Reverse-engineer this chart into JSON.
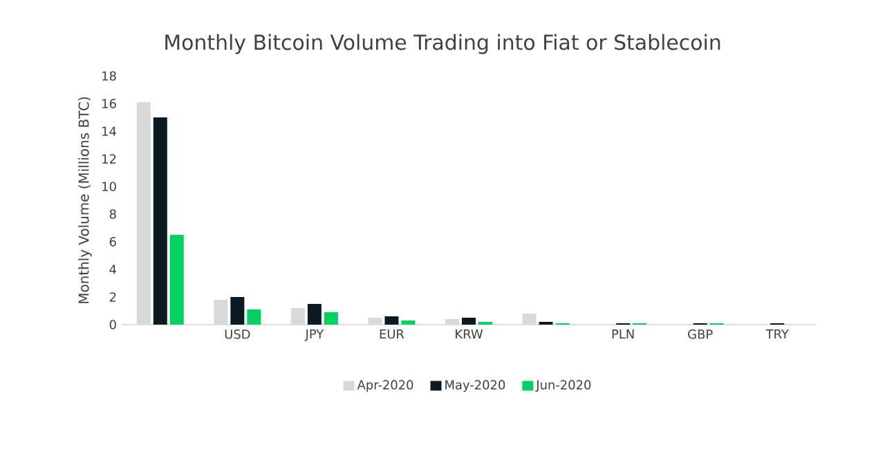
{
  "chart_data": {
    "type": "bar",
    "title": "Monthly Bitcoin Volume Trading into Fiat or Stablecoin",
    "ylabel": "Monthly Volume (Millions BTC)",
    "categories": [
      null,
      "USD",
      "JPY",
      "EUR",
      "KRW",
      null,
      "PLN",
      "GBP",
      "TRY"
    ],
    "series": [
      {
        "name": "Apr-2020",
        "color": "#d9d9d9",
        "values": [
          16.1,
          1.8,
          1.2,
          0.5,
          0.4,
          0.8,
          0.0,
          0.0,
          0.0
        ]
      },
      {
        "name": "May-2020",
        "color": "#0b1a22",
        "values": [
          15.0,
          2.0,
          1.5,
          0.6,
          0.5,
          0.2,
          0.1,
          0.1,
          0.1
        ]
      },
      {
        "name": "Jun-2020",
        "color": "#00d160",
        "values": [
          6.5,
          1.1,
          0.9,
          0.3,
          0.2,
          0.1,
          0.1,
          0.1,
          0.0
        ]
      }
    ],
    "ylim": [
      0,
      18
    ],
    "yticks": [
      0,
      2,
      4,
      6,
      8,
      10,
      12,
      14,
      16,
      18
    ],
    "grid": false,
    "legend": "bottom"
  }
}
